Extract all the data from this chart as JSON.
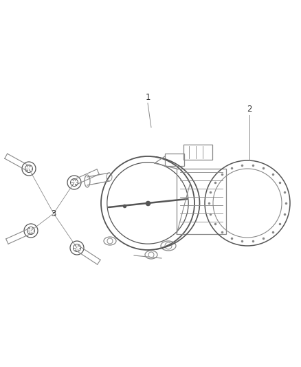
{
  "background_color": "#ffffff",
  "fig_width": 4.38,
  "fig_height": 5.33,
  "dpi": 100,
  "line_color": "#888888",
  "line_color_dark": "#555555",
  "text_color": "#333333",
  "font_size": 8.5,
  "label_1": "1",
  "label_2": "2",
  "label_3": "3"
}
